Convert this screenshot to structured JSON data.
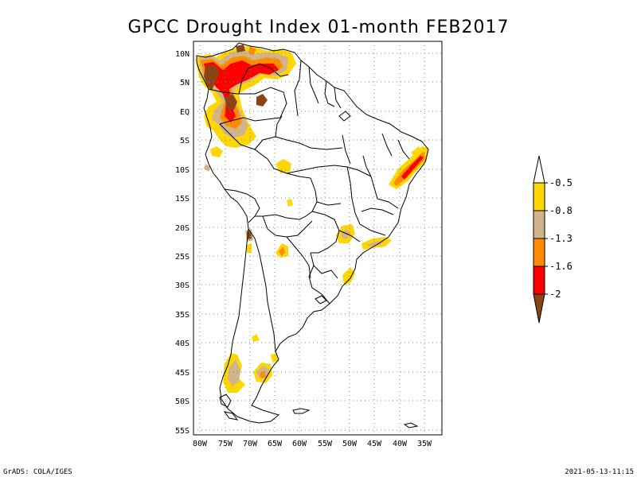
{
  "title": "GPCC Drought Index 01-month FEB2017",
  "footer": {
    "left": "GrADS: COLA/IGES",
    "right": "2021-05-13-11:15"
  },
  "lat_labels": [
    "10N",
    "5N",
    "EQ",
    "5S",
    "10S",
    "15S",
    "20S",
    "25S",
    "30S",
    "35S",
    "40S",
    "45S",
    "50S",
    "55S"
  ],
  "lon_labels": [
    "80W",
    "75W",
    "70W",
    "65W",
    "60W",
    "55W",
    "50W",
    "45W",
    "40W",
    "35W"
  ],
  "legend": {
    "labels": [
      "-0.5",
      "-0.8",
      "-1.3",
      "-1.6",
      "-2"
    ],
    "colors": {
      "above": "#ffffff",
      "c1": "#ffd700",
      "c2": "#d2b48c",
      "c3": "#ff8c00",
      "c4": "#ff0000",
      "c5": "#8b4513"
    }
  },
  "colors": {
    "land_outline": "#000000",
    "grid": "#777777",
    "mild": "#ffd700",
    "moderate": "#d2b48c",
    "severe": "#ff8c00",
    "extreme": "#ff0000",
    "exceptional": "#8b4513"
  }
}
